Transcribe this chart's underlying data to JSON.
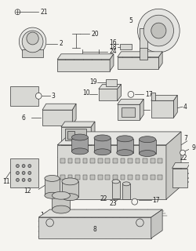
{
  "bg_color": "#f5f4f0",
  "line_color": "#383838",
  "label_color": "#222222",
  "fs": 5.5,
  "fw": "normal"
}
